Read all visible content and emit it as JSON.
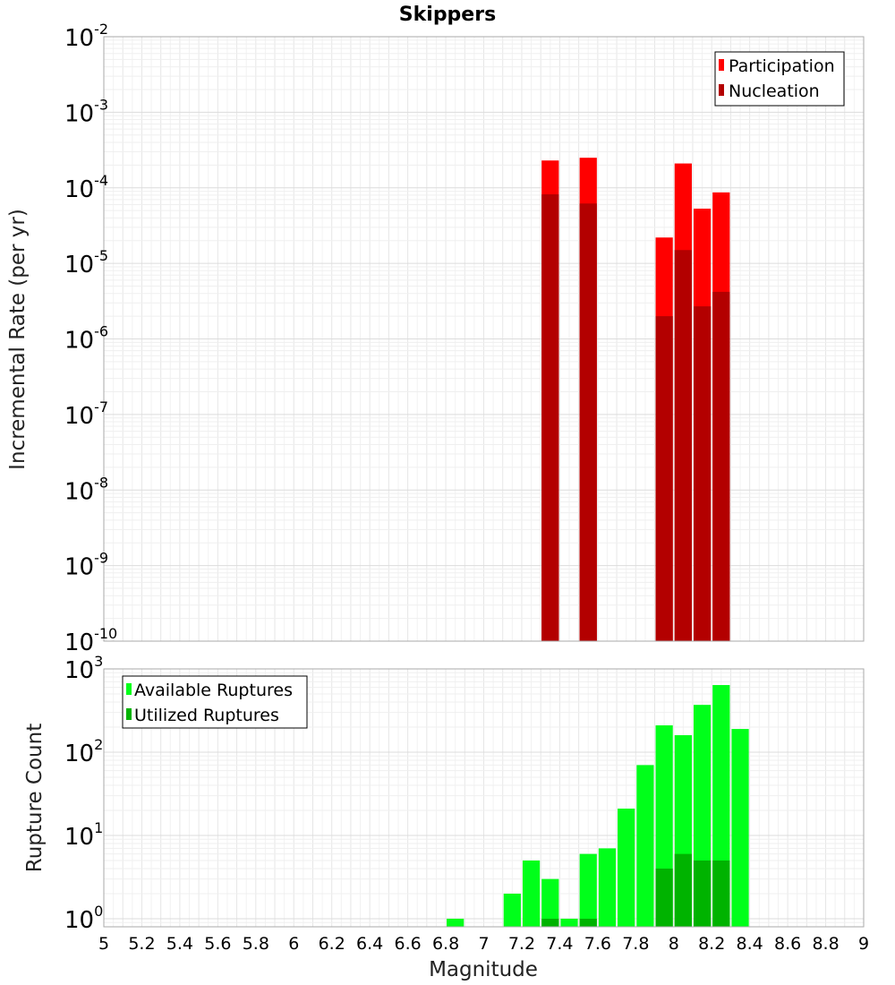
{
  "chart_data": [
    {
      "type": "bar",
      "title": "Skippers",
      "xlabel": "",
      "ylabel": "Incremental Rate (per yr)",
      "yscale": "log",
      "xlim": [
        5,
        9
      ],
      "ylim": [
        1e-10,
        0.01
      ],
      "y_tick_exponents": [
        -2,
        -3,
        -4,
        -5,
        -6,
        -7,
        -8,
        -9,
        -10
      ],
      "grid": true,
      "legend": "top-right",
      "bin_width": 0.1,
      "series": [
        {
          "name": "Participation",
          "color": "#ff0000",
          "x": [
            7.35,
            7.55,
            7.95,
            8.05,
            8.15,
            8.25
          ],
          "values": [
            0.00023,
            0.00025,
            2.2e-05,
            0.00021,
            5.3e-05,
            8.7e-05
          ]
        },
        {
          "name": "Nucleation",
          "color": "#b30000",
          "x": [
            7.35,
            7.55,
            7.95,
            8.05,
            8.15,
            8.25
          ],
          "values": [
            8.2e-05,
            6.2e-05,
            2e-06,
            1.5e-05,
            2.7e-06,
            4.2e-06
          ]
        }
      ]
    },
    {
      "type": "bar",
      "title": "",
      "xlabel": "Magnitude",
      "ylabel": "Rupture Count",
      "yscale": "log",
      "xlim": [
        5,
        9
      ],
      "ylim": [
        0.8,
        1000
      ],
      "y_tick_exponents": [
        3,
        2,
        1,
        0
      ],
      "x_ticks": [
        "5",
        "5.2",
        "5.4",
        "5.6",
        "5.8",
        "6",
        "6.2",
        "6.4",
        "6.6",
        "6.8",
        "7",
        "7.2",
        "7.4",
        "7.6",
        "7.8",
        "8",
        "8.2",
        "8.4",
        "8.6",
        "8.8",
        "9"
      ],
      "grid": true,
      "legend": "top-left",
      "bin_width": 0.1,
      "series": [
        {
          "name": "Available Ruptures",
          "color": "#00ff1a",
          "x": [
            6.85,
            7.15,
            7.25,
            7.35,
            7.45,
            7.55,
            7.65,
            7.75,
            7.85,
            7.95,
            8.05,
            8.15,
            8.25,
            8.35
          ],
          "values": [
            1,
            2,
            5,
            3,
            1,
            6,
            7,
            21,
            70,
            210,
            160,
            370,
            640,
            190
          ]
        },
        {
          "name": "Utilized Ruptures",
          "color": "#00b300",
          "x": [
            7.35,
            7.55,
            7.95,
            8.05,
            8.15,
            8.25
          ],
          "values": [
            1,
            1,
            4,
            6,
            5,
            5
          ]
        }
      ]
    }
  ]
}
